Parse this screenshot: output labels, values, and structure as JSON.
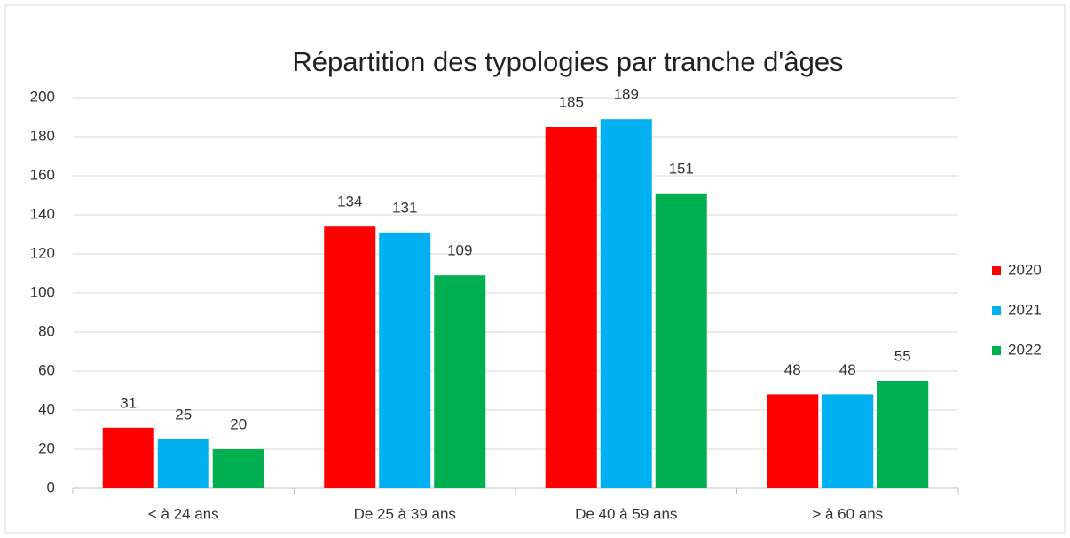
{
  "chart_data": {
    "type": "bar",
    "title": "Répartition des typologies par tranche d'âges",
    "categories": [
      "< à 24 ans",
      "De 25 à 39 ans",
      "De 40 à 59 ans",
      "> à 60 ans"
    ],
    "series": [
      {
        "name": "2020",
        "color": "#ff0000",
        "values": [
          31,
          134,
          185,
          48
        ]
      },
      {
        "name": "2021",
        "color": "#00b0f0",
        "values": [
          25,
          131,
          189,
          48
        ]
      },
      {
        "name": "2022",
        "color": "#00b050",
        "values": [
          20,
          109,
          151,
          55
        ]
      }
    ],
    "ylim": [
      0,
      200
    ],
    "yticks": [
      0,
      20,
      40,
      60,
      80,
      100,
      120,
      140,
      160,
      180,
      200
    ],
    "grid": true,
    "legend": "right"
  }
}
